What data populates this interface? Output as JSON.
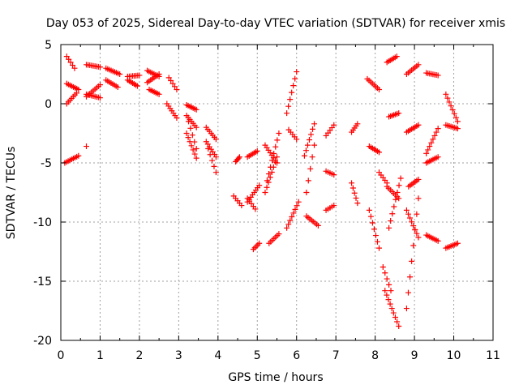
{
  "chart_data": {
    "type": "scatter",
    "title": "Day 053 of 2025, Sidereal Day-to-day VTEC variation (SDTVAR) for receiver xmis",
    "xlabel": "GPS time / hours",
    "ylabel": "SDTVAR / TECUs",
    "xlim": [
      0,
      11
    ],
    "ylim": [
      -20,
      5
    ],
    "grid": true,
    "marker": "+",
    "color": "#ff0000",
    "xticks": [
      "0",
      "1",
      "2",
      "3",
      "4",
      "5",
      "6",
      "7",
      "8",
      "9",
      "10",
      "11"
    ],
    "yticks": [
      "5",
      "0",
      "-5",
      "-10",
      "-15",
      "-20"
    ],
    "tracks": [
      {
        "x": [
          0.15,
          0.35
        ],
        "y": [
          4.0,
          3.0
        ]
      },
      {
        "x": [
          0.15,
          0.45
        ],
        "y": [
          1.7,
          1.2
        ]
      },
      {
        "x": [
          0.15,
          0.4
        ],
        "y": [
          0.0,
          0.9
        ]
      },
      {
        "x": [
          0.1,
          0.45
        ],
        "y": [
          -5.0,
          -4.4
        ]
      },
      {
        "x": [
          0.65,
          1.0
        ],
        "y": [
          3.3,
          3.1
        ]
      },
      {
        "x": [
          0.65,
          1.0
        ],
        "y": [
          0.6,
          1.6
        ]
      },
      {
        "x": [
          0.65,
          1.0
        ],
        "y": [
          0.8,
          0.5
        ]
      },
      {
        "x": [
          1.15,
          1.5
        ],
        "y": [
          3.0,
          2.5
        ]
      },
      {
        "x": [
          1.15,
          1.45
        ],
        "y": [
          2.0,
          1.4
        ]
      },
      {
        "x": [
          1.7,
          2.0
        ],
        "y": [
          2.3,
          2.4
        ]
      },
      {
        "x": [
          1.7,
          1.95
        ],
        "y": [
          2.0,
          1.5
        ]
      },
      {
        "x": [
          2.2,
          2.5
        ],
        "y": [
          2.8,
          2.3
        ]
      },
      {
        "x": [
          2.2,
          2.5
        ],
        "y": [
          1.8,
          2.5
        ]
      },
      {
        "x": [
          2.25,
          2.5
        ],
        "y": [
          1.2,
          0.8
        ]
      },
      {
        "x": [
          2.75,
          2.95
        ],
        "y": [
          2.2,
          1.2
        ]
      },
      {
        "x": [
          2.7,
          2.95
        ],
        "y": [
          0.0,
          -1.2
        ]
      },
      {
        "x": [
          3.2,
          3.45
        ],
        "y": [
          -0.1,
          -0.5
        ]
      },
      {
        "x": [
          3.2,
          3.45
        ],
        "y": [
          -1.0,
          -2.0
        ]
      },
      {
        "x": [
          3.25,
          3.45
        ],
        "y": [
          -1.5,
          -3.8
        ]
      },
      {
        "x": [
          3.2,
          3.45
        ],
        "y": [
          -2.5,
          -4.6
        ]
      },
      {
        "x": [
          3.7,
          3.95
        ],
        "y": [
          -2.0,
          -3.0
        ]
      },
      {
        "x": [
          3.7,
          3.95
        ],
        "y": [
          -3.2,
          -4.5
        ]
      },
      {
        "x": [
          3.75,
          3.95
        ],
        "y": [
          -3.8,
          -5.8
        ]
      },
      {
        "x": [
          4.45,
          4.55
        ],
        "y": [
          -4.9,
          -4.5
        ]
      },
      {
        "x": [
          4.4,
          4.6
        ],
        "y": [
          -7.8,
          -8.6
        ]
      },
      {
        "x": [
          4.75,
          5.0
        ],
        "y": [
          -4.5,
          -4.0
        ]
      },
      {
        "x": [
          4.75,
          5.05
        ],
        "y": [
          -8.3,
          -6.9
        ]
      },
      {
        "x": [
          4.75,
          4.95
        ],
        "y": [
          -8.0,
          -8.9
        ]
      },
      {
        "x": [
          4.9,
          5.05
        ],
        "y": [
          -12.3,
          -11.8
        ]
      },
      {
        "x": [
          5.2,
          5.5
        ],
        "y": [
          -3.5,
          -5.0
        ]
      },
      {
        "x": [
          5.25,
          5.55
        ],
        "y": [
          -6.5,
          -2.5
        ]
      },
      {
        "x": [
          5.2,
          5.5
        ],
        "y": [
          -7.5,
          -4.5
        ]
      },
      {
        "x": [
          5.3,
          5.55
        ],
        "y": [
          -11.8,
          -11.0
        ]
      },
      {
        "x": [
          5.75,
          6.0
        ],
        "y": [
          -0.8,
          2.7
        ]
      },
      {
        "x": [
          5.8,
          6.0
        ],
        "y": [
          -2.2,
          -3.0
        ]
      },
      {
        "x": [
          5.75,
          6.05
        ],
        "y": [
          -10.5,
          -8.3
        ]
      },
      {
        "x": [
          6.2,
          6.45
        ],
        "y": [
          -4.4,
          -1.7
        ]
      },
      {
        "x": [
          6.25,
          6.45
        ],
        "y": [
          -7.5,
          -3.5
        ]
      },
      {
        "x": [
          6.25,
          6.55
        ],
        "y": [
          -9.5,
          -10.3
        ]
      },
      {
        "x": [
          6.75,
          6.95
        ],
        "y": [
          -2.7,
          -1.8
        ]
      },
      {
        "x": [
          6.75,
          6.95
        ],
        "y": [
          -5.7,
          -6.0
        ]
      },
      {
        "x": [
          6.75,
          6.95
        ],
        "y": [
          -9.0,
          -8.6
        ]
      },
      {
        "x": [
          7.4,
          7.55
        ],
        "y": [
          -2.4,
          -1.7
        ]
      },
      {
        "x": [
          7.4,
          7.55
        ],
        "y": [
          -6.7,
          -8.4
        ]
      },
      {
        "x": [
          7.8,
          8.1
        ],
        "y": [
          2.1,
          1.2
        ]
      },
      {
        "x": [
          7.85,
          8.1
        ],
        "y": [
          -3.6,
          -4.1
        ]
      },
      {
        "x": [
          7.85,
          8.1
        ],
        "y": [
          -9.0,
          -12.2
        ]
      },
      {
        "x": [
          8.1,
          8.3
        ],
        "y": [
          -5.8,
          -6.7
        ]
      },
      {
        "x": [
          8.3,
          8.55
        ],
        "y": [
          3.5,
          4.0
        ]
      },
      {
        "x": [
          8.35,
          8.6
        ],
        "y": [
          -1.1,
          -0.8
        ]
      },
      {
        "x": [
          8.35,
          8.65
        ],
        "y": [
          -10.5,
          -6.3
        ]
      },
      {
        "x": [
          8.3,
          8.6
        ],
        "y": [
          -7.0,
          -8.0
        ]
      },
      {
        "x": [
          8.25,
          8.6
        ],
        "y": [
          -15.8,
          -18.8
        ]
      },
      {
        "x": [
          8.2,
          8.4
        ],
        "y": [
          -13.8,
          -15.8
        ]
      },
      {
        "x": [
          8.8,
          9.1
        ],
        "y": [
          2.5,
          3.3
        ]
      },
      {
        "x": [
          8.8,
          9.1
        ],
        "y": [
          -2.4,
          -1.8
        ]
      },
      {
        "x": [
          8.85,
          9.1
        ],
        "y": [
          -7.0,
          -6.4
        ]
      },
      {
        "x": [
          8.8,
          9.1
        ],
        "y": [
          -17.3,
          -8.0
        ]
      },
      {
        "x": [
          8.8,
          9.1
        ],
        "y": [
          -9.0,
          -11.3
        ]
      },
      {
        "x": [
          9.3,
          9.6
        ],
        "y": [
          2.6,
          2.4
        ]
      },
      {
        "x": [
          9.3,
          9.6
        ],
        "y": [
          -4.2,
          -2.1
        ]
      },
      {
        "x": [
          9.3,
          9.6
        ],
        "y": [
          -5.0,
          -4.5
        ]
      },
      {
        "x": [
          9.3,
          9.6
        ],
        "y": [
          -11.1,
          -11.6
        ]
      },
      {
        "x": [
          9.8,
          10.1
        ],
        "y": [
          0.8,
          -1.5
        ]
      },
      {
        "x": [
          9.8,
          10.1
        ],
        "y": [
          -1.8,
          -2.1
        ]
      },
      {
        "x": [
          9.8,
          10.1
        ],
        "y": [
          -12.2,
          -11.8
        ]
      },
      {
        "x": [
          0.65
        ],
        "y": [
          -3.6
        ]
      }
    ]
  }
}
